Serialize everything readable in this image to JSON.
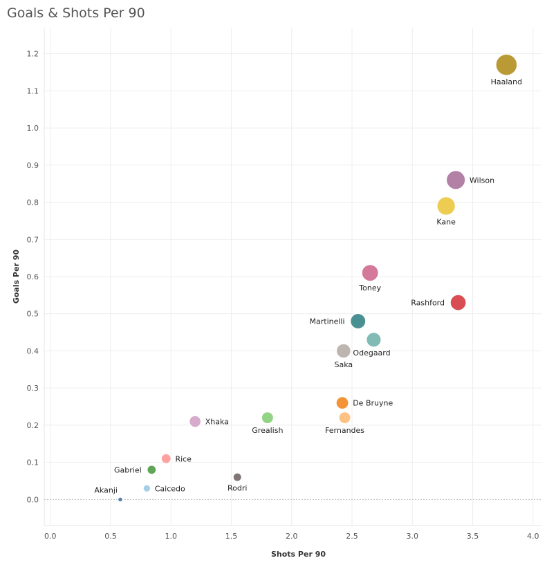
{
  "chart_data": {
    "type": "scatter",
    "title": "Goals & Shots Per 90",
    "xlabel": "Shots Per 90",
    "ylabel": "Goals Per 90",
    "xlim": [
      -0.05,
      4.07
    ],
    "ylim": [
      -0.07,
      1.27
    ],
    "xticks": [
      "0.0",
      "0.5",
      "1.0",
      "1.5",
      "2.0",
      "2.5",
      "3.0",
      "3.5",
      "4.0"
    ],
    "yticks": [
      "0.0",
      "0.1",
      "0.2",
      "0.3",
      "0.4",
      "0.5",
      "0.6",
      "0.7",
      "0.8",
      "0.9",
      "1.0",
      "1.1",
      "1.2"
    ],
    "grid": true,
    "points": [
      {
        "name": "Haaland",
        "x": 3.78,
        "y": 1.17,
        "color": "#b5952a",
        "label_pos": "below"
      },
      {
        "name": "Wilson",
        "x": 3.36,
        "y": 0.86,
        "color": "#b07aa1",
        "label_pos": "right"
      },
      {
        "name": "Kane",
        "x": 3.28,
        "y": 0.79,
        "color": "#edc948",
        "label_pos": "below"
      },
      {
        "name": "Toney",
        "x": 2.65,
        "y": 0.61,
        "color": "#d37295",
        "label_pos": "below"
      },
      {
        "name": "Rashford",
        "x": 3.38,
        "y": 0.53,
        "color": "#d6454a",
        "label_pos": "left"
      },
      {
        "name": "Martinelli",
        "x": 2.55,
        "y": 0.48,
        "color": "#3f8a8c",
        "label_pos": "left"
      },
      {
        "name": "Odegaard",
        "x": 2.68,
        "y": 0.43,
        "color": "#79b7b2",
        "label_pos": "below-right"
      },
      {
        "name": "Saka",
        "x": 2.43,
        "y": 0.4,
        "color": "#bab0ac",
        "label_pos": "below"
      },
      {
        "name": "De Bruyne",
        "x": 2.42,
        "y": 0.26,
        "color": "#f28e2b",
        "label_pos": "right"
      },
      {
        "name": "Fernandes",
        "x": 2.44,
        "y": 0.22,
        "color": "#ffbe7d",
        "label_pos": "below"
      },
      {
        "name": "Grealish",
        "x": 1.8,
        "y": 0.22,
        "color": "#8cd17d",
        "label_pos": "below"
      },
      {
        "name": "Xhaka",
        "x": 1.2,
        "y": 0.21,
        "color": "#d4a6c8",
        "label_pos": "right"
      },
      {
        "name": "Rice",
        "x": 0.96,
        "y": 0.11,
        "color": "#ff9d9a",
        "label_pos": "right"
      },
      {
        "name": "Gabriel",
        "x": 0.84,
        "y": 0.08,
        "color": "#59a14f",
        "label_pos": "left"
      },
      {
        "name": "Rodri",
        "x": 1.55,
        "y": 0.06,
        "color": "#79706e",
        "label_pos": "below"
      },
      {
        "name": "Caicedo",
        "x": 0.8,
        "y": 0.03,
        "color": "#a0cbe8",
        "label_pos": "right"
      },
      {
        "name": "Akanji",
        "x": 0.58,
        "y": 0.0,
        "color": "#4e79a7",
        "label_pos": "above-left"
      }
    ]
  }
}
